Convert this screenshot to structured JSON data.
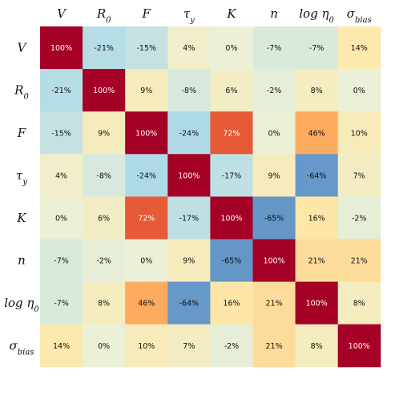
{
  "chart_data": {
    "type": "heatmap",
    "title": "",
    "xlabel": "",
    "ylabel": "",
    "col_labels": [
      "V",
      "R0",
      "F",
      "τy",
      "K",
      "n",
      "log η0",
      "σbias"
    ],
    "row_labels": [
      "V",
      "R0",
      "F",
      "τy",
      "K",
      "n",
      "log η0",
      "σbias"
    ],
    "label_parts": [
      {
        "base": "V",
        "sub": ""
      },
      {
        "base": "R",
        "sub": "0"
      },
      {
        "base": "F",
        "sub": ""
      },
      {
        "base": "τ",
        "sub": "y"
      },
      {
        "base": "K",
        "sub": ""
      },
      {
        "base": "n",
        "sub": ""
      },
      {
        "base": "log η",
        "sub": "0"
      },
      {
        "base": "σ",
        "sub": "bias"
      }
    ],
    "values": [
      [
        100,
        -21,
        -15,
        4,
        0,
        -7,
        -7,
        14
      ],
      [
        -21,
        100,
        9,
        -8,
        6,
        -2,
        8,
        0
      ],
      [
        -15,
        9,
        100,
        -24,
        72,
        0,
        46,
        10
      ],
      [
        4,
        -8,
        -24,
        100,
        -17,
        9,
        -64,
        7
      ],
      [
        0,
        6,
        72,
        -17,
        100,
        -65,
        16,
        -2
      ],
      [
        -7,
        -2,
        0,
        9,
        -65,
        100,
        21,
        21
      ],
      [
        -7,
        8,
        46,
        -64,
        16,
        21,
        100,
        8
      ],
      [
        14,
        0,
        10,
        7,
        -2,
        21,
        8,
        100
      ]
    ],
    "value_suffix": "%",
    "colormap": "diverging red-yellow-blue",
    "color_stops": [
      "#4575b4",
      "#abd9e9",
      "#ffffbf",
      "#fdae61",
      "#d7191c",
      "#a50026"
    ]
  }
}
